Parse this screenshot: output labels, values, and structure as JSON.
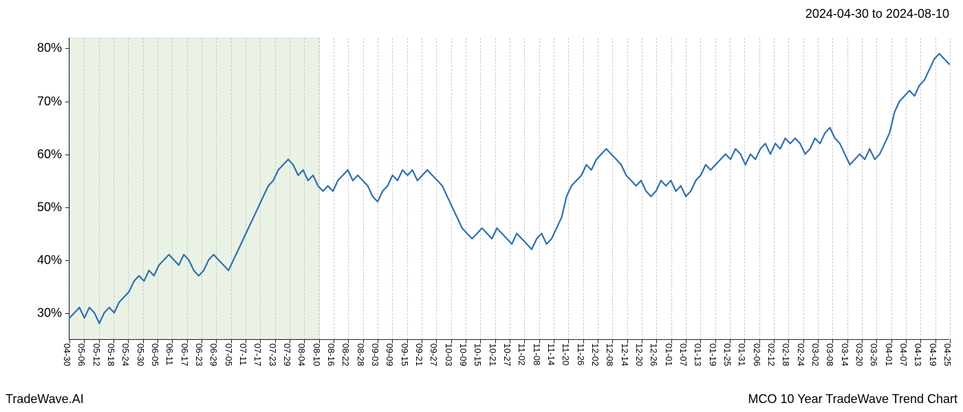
{
  "header": {
    "date_range": "2024-04-30 to 2024-08-10"
  },
  "footer": {
    "brand": "TradeWave.AI",
    "title": "MCO 10 Year TradeWave Trend Chart"
  },
  "chart": {
    "type": "line",
    "background_color": "#ffffff",
    "grid_color": "#c8c8c8",
    "axis_color": "#222222",
    "line_color": "#2e6fae",
    "line_width": 2.2,
    "highlight_band": {
      "fill": "#d9e8d0",
      "border": "#b8ccae",
      "opacity": 0.55,
      "x_start_index": 0,
      "x_end_index": 17
    },
    "y_axis": {
      "min": 25,
      "max": 82,
      "ticks": [
        30,
        40,
        50,
        60,
        70,
        80
      ],
      "tick_suffix": "%",
      "label_fontsize": 18
    },
    "x_axis": {
      "labels": [
        "04-30",
        "05-06",
        "05-12",
        "05-18",
        "05-24",
        "05-30",
        "06-05",
        "06-11",
        "06-17",
        "06-23",
        "06-29",
        "07-05",
        "07-11",
        "07-17",
        "07-23",
        "07-29",
        "08-04",
        "08-10",
        "08-16",
        "08-22",
        "08-28",
        "09-03",
        "09-09",
        "09-15",
        "09-21",
        "09-27",
        "10-03",
        "10-09",
        "10-15",
        "10-21",
        "10-27",
        "11-02",
        "11-08",
        "11-14",
        "11-20",
        "11-26",
        "12-02",
        "12-08",
        "12-14",
        "12-20",
        "12-26",
        "01-01",
        "01-07",
        "01-13",
        "01-19",
        "01-25",
        "01-31",
        "02-06",
        "02-12",
        "02-18",
        "02-24",
        "03-02",
        "03-08",
        "03-14",
        "03-20",
        "03-26",
        "04-01",
        "04-07",
        "04-13",
        "04-19",
        "04-25"
      ],
      "label_fontsize": 13,
      "rotation": 90
    },
    "series": {
      "name": "MCO trend",
      "values": [
        29,
        30,
        31,
        29,
        31,
        30,
        28,
        30,
        31,
        30,
        32,
        33,
        34,
        36,
        37,
        36,
        38,
        37,
        39,
        40,
        41,
        40,
        39,
        41,
        40,
        38,
        37,
        38,
        40,
        41,
        40,
        39,
        38,
        40,
        42,
        44,
        46,
        48,
        50,
        52,
        54,
        55,
        57,
        58,
        59,
        58,
        56,
        57,
        55,
        56,
        54,
        53,
        54,
        53,
        55,
        56,
        57,
        55,
        56,
        55,
        54,
        52,
        51,
        53,
        54,
        56,
        55,
        57,
        56,
        57,
        55,
        56,
        57,
        56,
        55,
        54,
        52,
        50,
        48,
        46,
        45,
        44,
        45,
        46,
        45,
        44,
        46,
        45,
        44,
        43,
        45,
        44,
        43,
        42,
        44,
        45,
        43,
        44,
        46,
        48,
        52,
        54,
        55,
        56,
        58,
        57,
        59,
        60,
        61,
        60,
        59,
        58,
        56,
        55,
        54,
        55,
        53,
        52,
        53,
        55,
        54,
        55,
        53,
        54,
        52,
        53,
        55,
        56,
        58,
        57,
        58,
        59,
        60,
        59,
        61,
        60,
        58,
        60,
        59,
        61,
        62,
        60,
        62,
        61,
        63,
        62,
        63,
        62,
        60,
        61,
        63,
        62,
        64,
        65,
        63,
        62,
        60,
        58,
        59,
        60,
        59,
        61,
        59,
        60,
        62,
        64,
        68,
        70,
        71,
        72,
        71,
        73,
        74,
        76,
        78,
        79,
        78,
        77
      ]
    }
  }
}
